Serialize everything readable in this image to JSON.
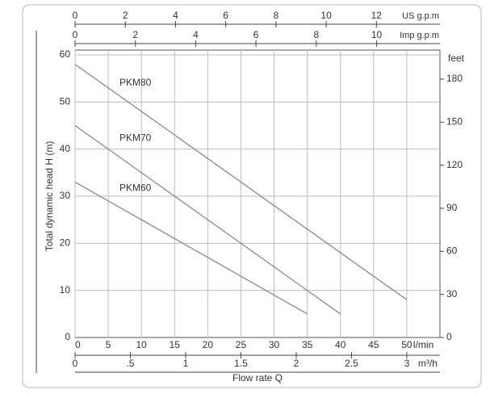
{
  "chart_data": {
    "type": "line",
    "x_label": "Flow rate Q",
    "x_unit": "l/min",
    "y_label": "Total dynamic head H (m)",
    "xlim": [
      0,
      55
    ],
    "xticks": [
      0,
      5,
      10,
      15,
      20,
      25,
      30,
      35,
      40,
      45,
      50
    ],
    "ylim": [
      0,
      60
    ],
    "yticks": [
      0,
      10,
      20,
      30,
      40,
      50,
      60
    ],
    "grid": true,
    "series": [
      {
        "name": "PKM80",
        "color": "#8a8a8a",
        "x": [
          0,
          50
        ],
        "values": [
          58,
          8
        ]
      },
      {
        "name": "PKM70",
        "color": "#8a8a8a",
        "x": [
          0,
          40
        ],
        "values": [
          45,
          5
        ]
      },
      {
        "name": "PKM60",
        "color": "#8a8a8a",
        "x": [
          0,
          35
        ],
        "values": [
          33,
          5
        ]
      }
    ],
    "top_axes": [
      {
        "unit": "US g.p.m",
        "lim": [
          0,
          14.53
        ],
        "ticks": [
          0,
          2,
          4,
          6,
          8,
          10,
          12
        ]
      },
      {
        "unit": "Imp g.p.m",
        "lim": [
          0,
          12.1
        ],
        "ticks": [
          0,
          2,
          4,
          6,
          8,
          10
        ]
      }
    ],
    "bottom_axis2": {
      "unit": "m³/h",
      "lim": [
        0,
        3.3
      ],
      "ticks": [
        0,
        {
          "value": 0.5,
          "label": ".5"
        },
        1,
        1.5,
        2,
        2.5,
        3
      ]
    },
    "y2_unit": "feet",
    "y2lim": [
      0,
      196.85
    ],
    "y2ticks": [
      0,
      30,
      60,
      90,
      120,
      150,
      180
    ]
  }
}
